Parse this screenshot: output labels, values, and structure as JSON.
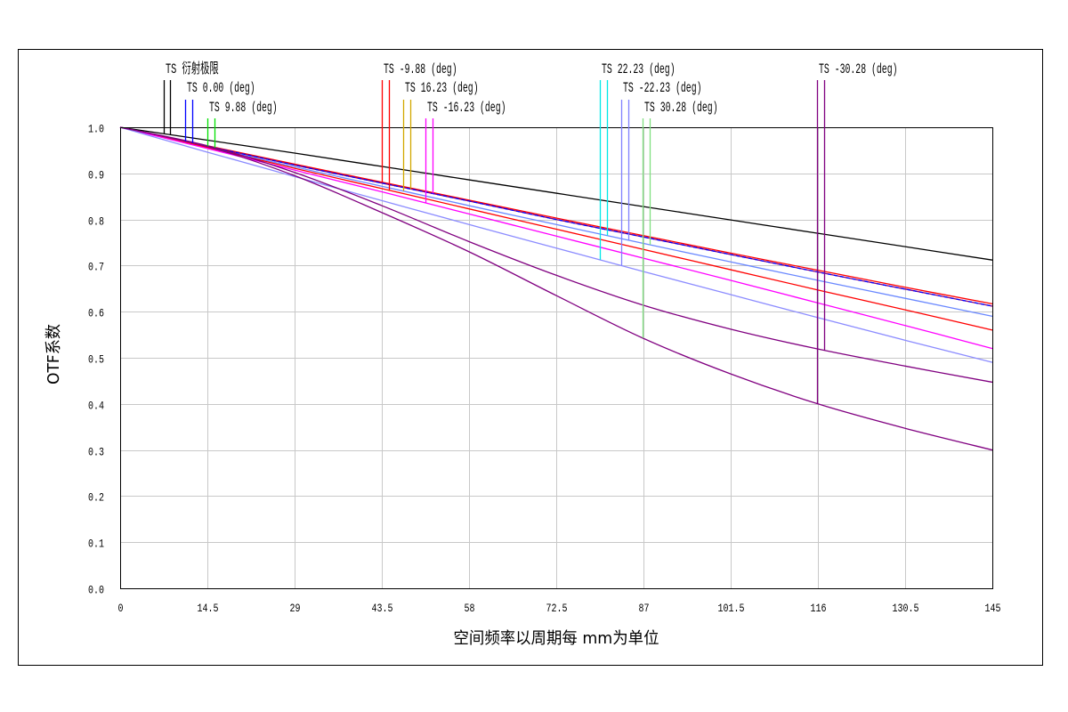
{
  "chart_data": {
    "type": "line",
    "xlabel": "空间频率以周期每 mm为单位",
    "ylabel": "OTF系数",
    "xlim": [
      0,
      145
    ],
    "ylim": [
      0,
      1
    ],
    "x_ticks": [
      "0",
      "14.5",
      "29",
      "43.5",
      "58",
      "72.5",
      "87",
      "101.5",
      "116",
      "130.5",
      "145"
    ],
    "y_ticks": [
      "0.0",
      "0.1",
      "0.2",
      "0.3",
      "0.4",
      "0.5",
      "0.6",
      "0.7",
      "0.8",
      "0.9",
      "1.0"
    ],
    "grid": true,
    "legend_placement": "top",
    "legend": [
      {
        "label": "TS 衍射极限",
        "color": "#000000"
      },
      {
        "label": "TS 0.00 (deg)",
        "color": "#0000ff"
      },
      {
        "label": "TS 9.88 (deg)",
        "color": "#00e000"
      },
      {
        "label": "TS -9.88 (deg)",
        "color": "#ff0000"
      },
      {
        "label": "TS 16.23 (deg)",
        "color": "#d2a800"
      },
      {
        "label": "TS -16.23 (deg)",
        "color": "#ff00ff"
      },
      {
        "label": "TS 22.23 (deg)",
        "color": "#00e8e8"
      },
      {
        "label": "TS -22.23 (deg)",
        "color": "#8080ff"
      },
      {
        "label": "TS 30.28 (deg)",
        "color": "#80e080"
      },
      {
        "label": "TS -30.28 (deg)",
        "color": "#800080"
      }
    ],
    "x": [
      0,
      14.5,
      29,
      43.5,
      58,
      72.5,
      87,
      101.5,
      116,
      130.5,
      145
    ],
    "series": [
      {
        "color": "#000000",
        "values": [
          1.0,
          0.972,
          0.944,
          0.915,
          0.886,
          0.857,
          0.828,
          0.799,
          0.77,
          0.741,
          0.712
        ]
      },
      {
        "color": "#ff0000",
        "values": [
          1.0,
          0.96,
          0.92,
          0.881,
          0.842,
          0.803,
          0.765,
          0.727,
          0.69,
          0.653,
          0.617
        ]
      },
      {
        "color": "#800080",
        "values": [
          1.0,
          0.959,
          0.918,
          0.879,
          0.84,
          0.8,
          0.762,
          0.724,
          0.686,
          0.649,
          0.612
        ]
      },
      {
        "color": "#0000ff",
        "style": "dashed",
        "values": [
          1.0,
          0.959,
          0.918,
          0.879,
          0.84,
          0.8,
          0.762,
          0.724,
          0.686,
          0.649,
          0.612
        ]
      },
      {
        "color": "#6a88ff",
        "values": [
          1.0,
          0.957,
          0.914,
          0.872,
          0.83,
          0.789,
          0.748,
          0.708,
          0.668,
          0.629,
          0.59
        ]
      },
      {
        "color": "#ff0000",
        "values": [
          1.0,
          0.956,
          0.911,
          0.867,
          0.823,
          0.779,
          0.735,
          0.691,
          0.647,
          0.604,
          0.56
        ]
      },
      {
        "color": "#ff00ff",
        "values": [
          1.0,
          0.954,
          0.907,
          0.86,
          0.812,
          0.764,
          0.716,
          0.668,
          0.619,
          0.57,
          0.52
        ]
      },
      {
        "color": "#8c8cff",
        "values": [
          1.0,
          0.946,
          0.893,
          0.841,
          0.789,
          0.738,
          0.687,
          0.637,
          0.587,
          0.538,
          0.49
        ]
      },
      {
        "color": "#800080",
        "values": [
          1.0,
          0.96,
          0.902,
          0.83,
          0.752,
          0.679,
          0.614,
          0.562,
          0.519,
          0.482,
          0.447
        ]
      },
      {
        "color": "#800080",
        "values": [
          1.0,
          0.958,
          0.895,
          0.815,
          0.73,
          0.635,
          0.542,
          0.465,
          0.4,
          0.347,
          0.3
        ]
      }
    ]
  }
}
